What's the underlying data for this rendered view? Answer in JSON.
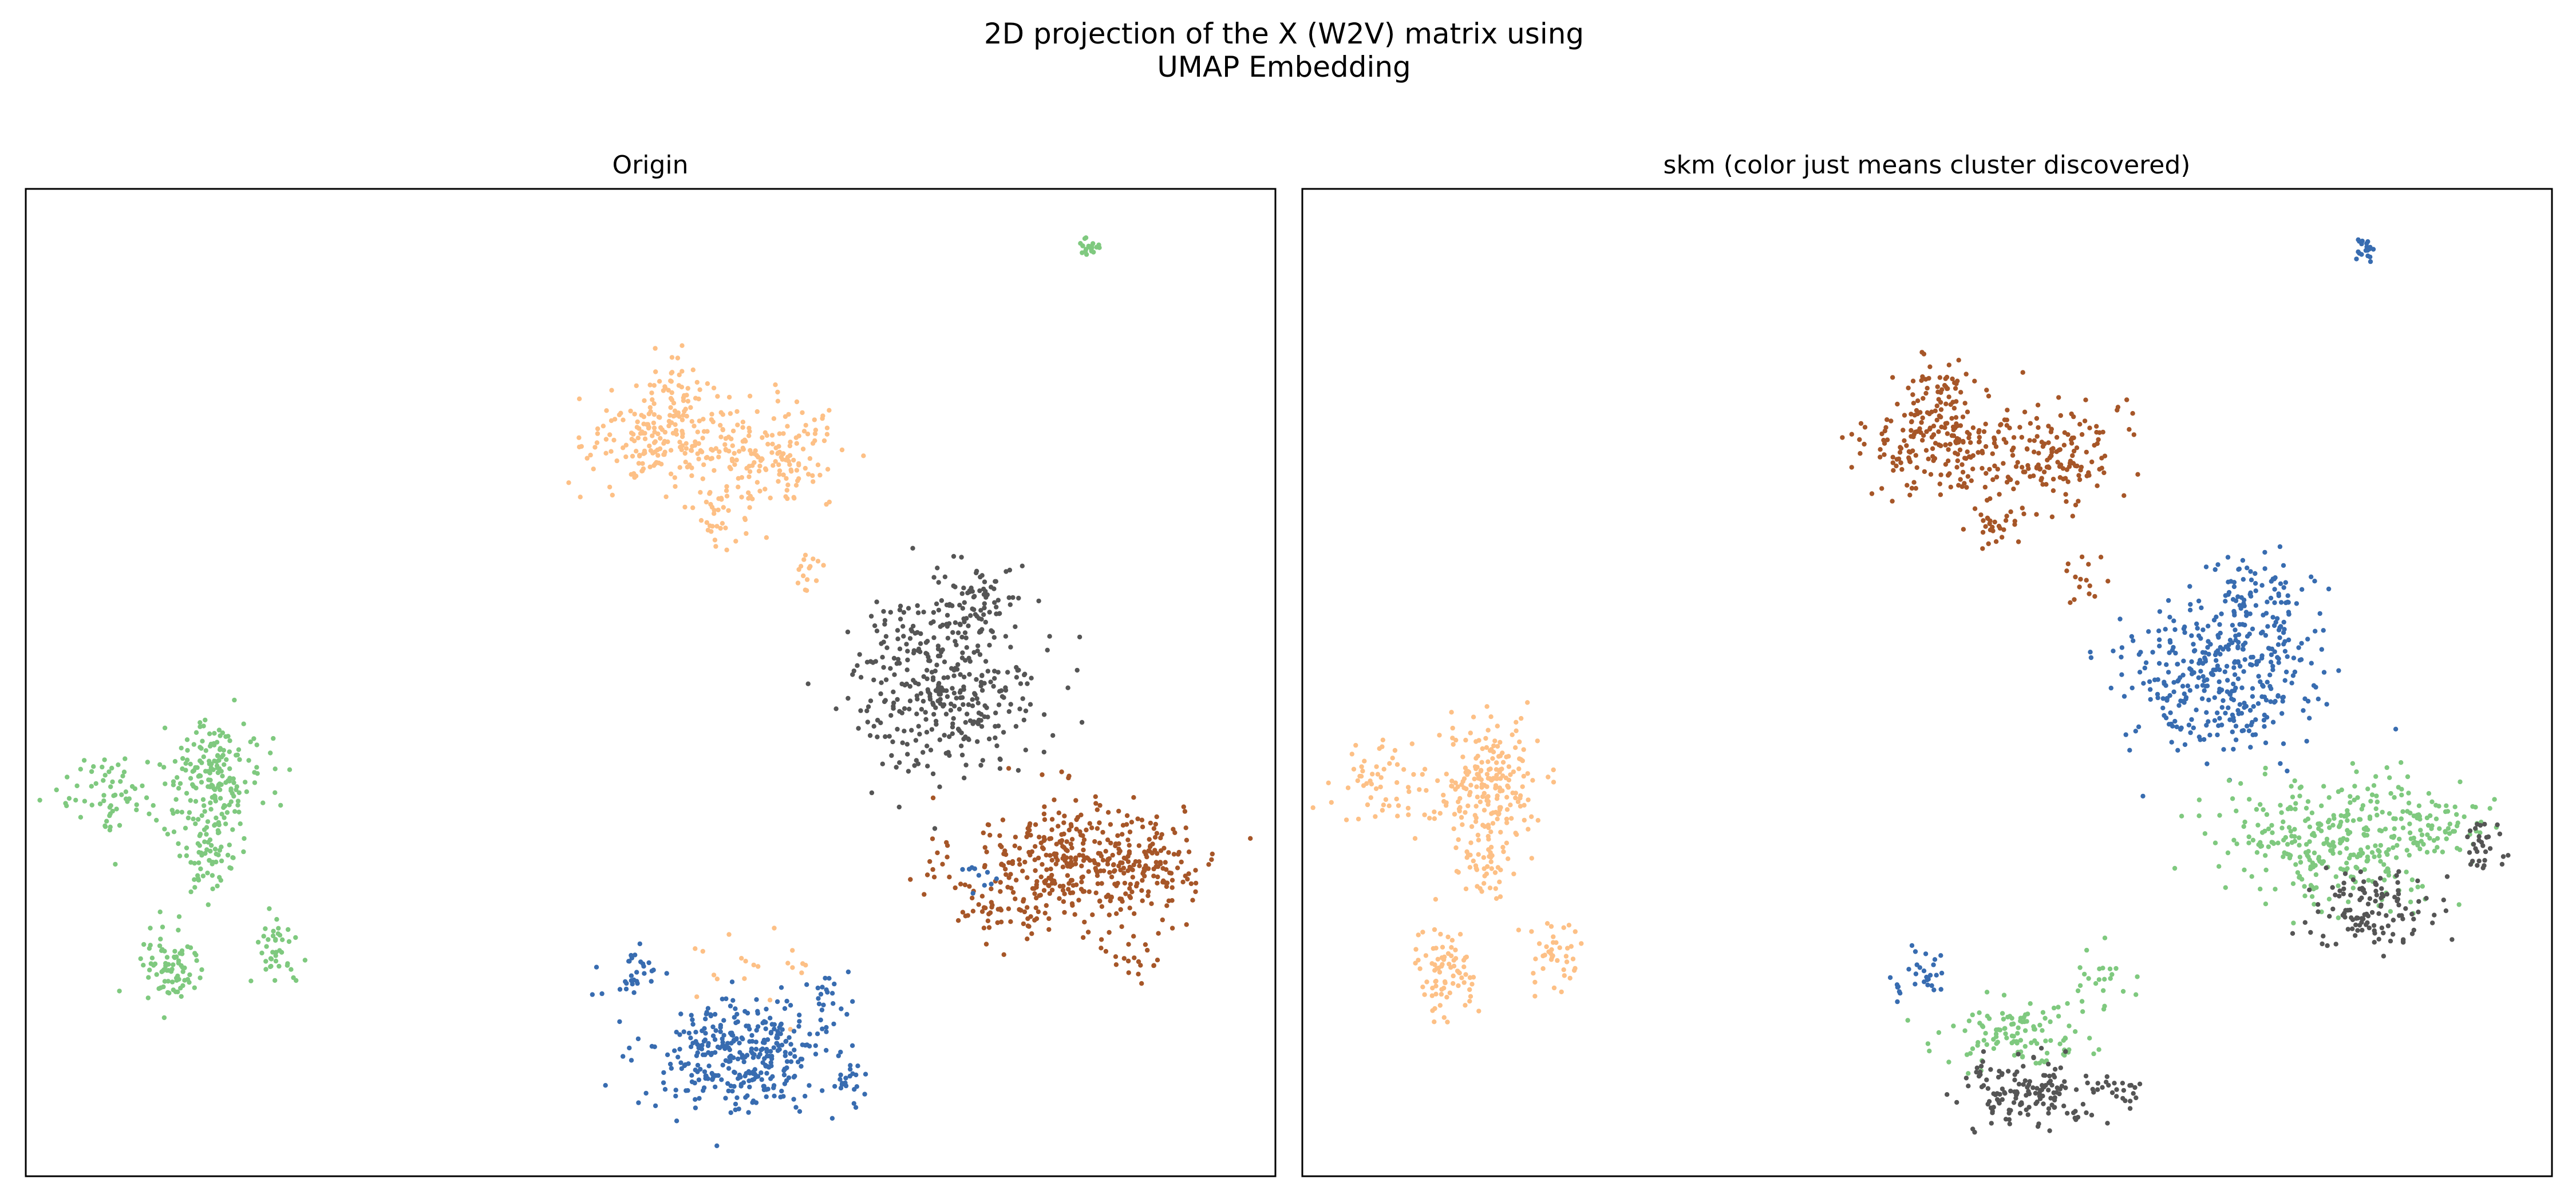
{
  "figure": {
    "title_line1": "2D projection of the X (W2V) matrix using",
    "title_line2": "UMAP Embedding"
  },
  "chart_data": [
    {
      "type": "scatter",
      "title": "Origin",
      "xlabel": "",
      "ylabel": "",
      "grid": false,
      "axis_ticks": false,
      "xlim": [
        0,
        100
      ],
      "ylim": [
        0,
        100
      ],
      "series": [
        {
          "color": "#a65628",
          "blobs": [
            {
              "cx": 83.5,
              "cy": 31.5,
              "rx": 9.0,
              "ry": 7.0,
              "n": 380
            },
            {
              "cx": 90.5,
              "cy": 32.0,
              "rx": 5.0,
              "ry": 4.0,
              "n": 80
            },
            {
              "cx": 76.5,
              "cy": 27.0,
              "rx": 3.0,
              "ry": 2.0,
              "n": 20
            },
            {
              "cx": 89.0,
              "cy": 22.0,
              "rx": 2.5,
              "ry": 3.0,
              "n": 20
            }
          ]
        },
        {
          "color": "#555555",
          "blobs": [
            {
              "cx": 73.5,
              "cy": 50.0,
              "rx": 7.5,
              "ry": 9.0,
              "n": 380
            },
            {
              "cx": 76.5,
              "cy": 58.5,
              "rx": 3.5,
              "ry": 3.5,
              "n": 60
            }
          ]
        },
        {
          "color": "#fdc086",
          "blobs": [
            {
              "cx": 51.5,
              "cy": 74.5,
              "rx": 6.5,
              "ry": 5.0,
              "n": 230
            },
            {
              "cx": 51.5,
              "cy": 80.5,
              "rx": 2.0,
              "ry": 3.0,
              "n": 30
            },
            {
              "cx": 60.5,
              "cy": 73.0,
              "rx": 5.0,
              "ry": 5.5,
              "n": 130
            },
            {
              "cx": 55.5,
              "cy": 66.0,
              "rx": 2.5,
              "ry": 3.5,
              "n": 30
            },
            {
              "cx": 62.5,
              "cy": 61.0,
              "rx": 1.5,
              "ry": 3.0,
              "n": 15
            },
            {
              "cx": 59.5,
              "cy": 21.0,
              "rx": 6.0,
              "ry": 4.0,
              "n": 20
            }
          ]
        },
        {
          "color": "#7fc97f",
          "blobs": [
            {
              "cx": 15.0,
              "cy": 40.0,
              "rx": 4.0,
              "ry": 6.0,
              "n": 200
            },
            {
              "cx": 6.5,
              "cy": 39.0,
              "rx": 4.0,
              "ry": 4.0,
              "n": 60
            },
            {
              "cx": 14.5,
              "cy": 32.0,
              "rx": 2.5,
              "ry": 4.0,
              "n": 50
            },
            {
              "cx": 11.5,
              "cy": 21.0,
              "rx": 2.5,
              "ry": 4.5,
              "n": 80
            },
            {
              "cx": 20.0,
              "cy": 23.0,
              "rx": 2.0,
              "ry": 4.0,
              "n": 40
            },
            {
              "cx": 85.1,
              "cy": 94.1,
              "rx": 0.8,
              "ry": 1.2,
              "n": 20
            }
          ]
        },
        {
          "color": "#386cb0",
          "blobs": [
            {
              "cx": 57.0,
              "cy": 12.0,
              "rx": 7.0,
              "ry": 5.5,
              "n": 330
            },
            {
              "cx": 48.5,
              "cy": 20.0,
              "rx": 2.5,
              "ry": 2.5,
              "n": 30
            },
            {
              "cx": 64.0,
              "cy": 17.5,
              "rx": 2.5,
              "ry": 4.0,
              "n": 30
            },
            {
              "cx": 66.0,
              "cy": 9.5,
              "rx": 2.0,
              "ry": 2.5,
              "n": 20
            },
            {
              "cx": 76.5,
              "cy": 30.5,
              "rx": 2.0,
              "ry": 2.0,
              "n": 10
            }
          ]
        }
      ]
    },
    {
      "type": "scatter",
      "title": "skm (color just means cluster discovered)",
      "xlabel": "",
      "ylabel": "",
      "grid": false,
      "axis_ticks": false,
      "xlim": [
        0,
        100
      ],
      "ylim": [
        0,
        100
      ],
      "series": [
        {
          "color": "#a65628",
          "blobs": [
            {
              "cx": 51.5,
              "cy": 74.5,
              "rx": 6.5,
              "ry": 5.0,
              "n": 230
            },
            {
              "cx": 51.5,
              "cy": 80.5,
              "rx": 2.0,
              "ry": 3.0,
              "n": 30
            },
            {
              "cx": 60.5,
              "cy": 73.0,
              "rx": 5.0,
              "ry": 5.5,
              "n": 130
            },
            {
              "cx": 55.5,
              "cy": 66.0,
              "rx": 2.5,
              "ry": 3.5,
              "n": 30
            },
            {
              "cx": 62.5,
              "cy": 61.0,
              "rx": 1.5,
              "ry": 3.0,
              "n": 15
            }
          ]
        },
        {
          "color": "#386cb0",
          "blobs": [
            {
              "cx": 73.5,
              "cy": 51.0,
              "rx": 7.5,
              "ry": 8.5,
              "n": 380
            },
            {
              "cx": 76.5,
              "cy": 59.0,
              "rx": 3.5,
              "ry": 3.5,
              "n": 60
            },
            {
              "cx": 49.0,
              "cy": 20.5,
              "rx": 2.5,
              "ry": 2.5,
              "n": 30
            },
            {
              "cx": 85.1,
              "cy": 94.1,
              "rx": 0.8,
              "ry": 1.2,
              "n": 20
            }
          ]
        },
        {
          "color": "#7fc97f",
          "blobs": [
            {
              "cx": 83.0,
              "cy": 34.0,
              "rx": 9.0,
              "ry": 6.0,
              "n": 320
            },
            {
              "cx": 91.0,
              "cy": 36.0,
              "rx": 4.0,
              "ry": 3.5,
              "n": 60
            },
            {
              "cx": 57.0,
              "cy": 14.5,
              "rx": 6.0,
              "ry": 3.0,
              "n": 110
            },
            {
              "cx": 63.5,
              "cy": 20.0,
              "rx": 2.5,
              "ry": 3.5,
              "n": 25
            }
          ]
        },
        {
          "color": "#555555",
          "blobs": [
            {
              "cx": 86.0,
              "cy": 27.0,
              "rx": 5.0,
              "ry": 4.0,
              "n": 120
            },
            {
              "cx": 94.5,
              "cy": 34.0,
              "rx": 2.5,
              "ry": 3.0,
              "n": 30
            },
            {
              "cx": 58.0,
              "cy": 8.5,
              "rx": 5.5,
              "ry": 3.0,
              "n": 150
            },
            {
              "cx": 65.5,
              "cy": 8.5,
              "rx": 2.0,
              "ry": 2.0,
              "n": 20
            }
          ]
        },
        {
          "color": "#fdc086",
          "blobs": [
            {
              "cx": 15.0,
              "cy": 40.0,
              "rx": 4.0,
              "ry": 6.0,
              "n": 200
            },
            {
              "cx": 6.5,
              "cy": 39.0,
              "rx": 4.0,
              "ry": 4.0,
              "n": 60
            },
            {
              "cx": 14.5,
              "cy": 32.0,
              "rx": 2.5,
              "ry": 4.0,
              "n": 50
            },
            {
              "cx": 11.5,
              "cy": 21.0,
              "rx": 2.5,
              "ry": 4.5,
              "n": 80
            },
            {
              "cx": 20.0,
              "cy": 23.0,
              "rx": 2.0,
              "ry": 4.0,
              "n": 40
            }
          ]
        }
      ]
    }
  ]
}
